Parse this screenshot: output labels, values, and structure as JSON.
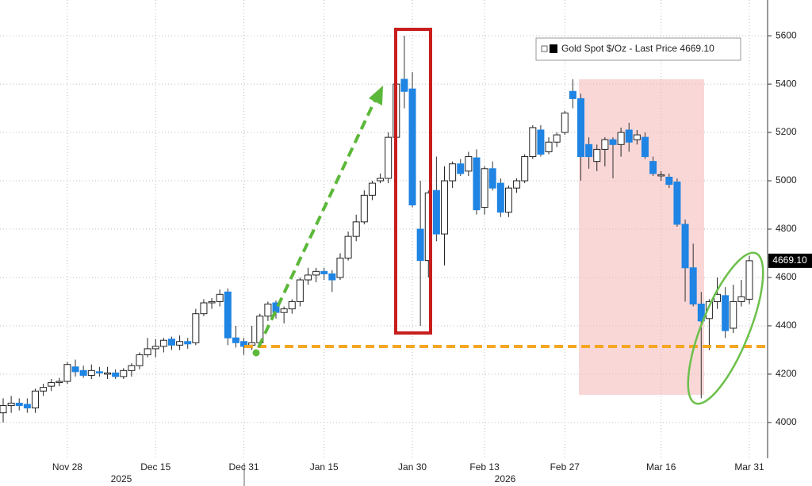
{
  "chart_data": {
    "type": "candlestick",
    "categories": [
      null,
      null,
      null,
      null,
      null,
      null,
      null,
      null,
      "Nov 28",
      null,
      null,
      null,
      null,
      null,
      null,
      null,
      null,
      null,
      null,
      "Dec 15",
      null,
      null,
      null,
      null,
      null,
      null,
      null,
      null,
      null,
      null,
      "Dec 31",
      null,
      null,
      null,
      null,
      null,
      null,
      null,
      null,
      null,
      "Jan 15",
      null,
      null,
      null,
      null,
      null,
      null,
      null,
      null,
      null,
      null,
      "Jan 30",
      null,
      null,
      null,
      null,
      null,
      null,
      null,
      null,
      "Feb 13",
      null,
      null,
      null,
      null,
      null,
      null,
      null,
      null,
      null,
      "Feb 27",
      null,
      null,
      null,
      null,
      null,
      null,
      null,
      null,
      null,
      null,
      null,
      "Mar 16",
      null,
      null,
      null,
      null,
      null,
      null,
      null,
      null,
      null,
      null,
      "Mar 31"
    ],
    "year_labels": [
      "2025",
      "2026"
    ],
    "series": [
      {
        "name": "Gold Spot $/Oz - Last Price 4669.10",
        "color": "#000000",
        "up_color": "#ffffff",
        "down_color": "#1f84e3",
        "open": [
          4040,
          4070,
          4080,
          4075,
          4060,
          4130,
          4150,
          4165,
          4170,
          4230,
          4215,
          4195,
          4210,
          4200,
          4205,
          4190,
          4215,
          4235,
          4280,
          4305,
          4315,
          4345,
          4320,
          4335,
          4330,
          4450,
          4495,
          4500,
          4540,
          4350,
          4335,
          4320,
          4330,
          4440,
          4495,
          4455,
          4470,
          4500,
          4590,
          4610,
          4625,
          4615,
          4600,
          4680,
          4770,
          4830,
          4940,
          5000,
          5010,
          5180,
          5420,
          5380,
          4800,
          4670,
          4960,
          4780,
          5000,
          5070,
          5040,
          5095,
          4890,
          5050,
          4990,
          4870,
          4970,
          5000,
          5100,
          5210,
          5120,
          5160,
          5200,
          5370,
          5340,
          5150,
          5080,
          5130,
          5170,
          5150,
          5210,
          5170,
          5180,
          5080,
          5020,
          5015,
          4995,
          4820,
          4640,
          4490,
          4430,
          4500,
          4525,
          4390,
          4500,
          4510
        ],
        "high": [
          4100,
          4110,
          4100,
          4100,
          4140,
          4160,
          4180,
          4185,
          4250,
          4260,
          4235,
          4240,
          4230,
          4230,
          4220,
          4225,
          4245,
          4290,
          4350,
          4345,
          4350,
          4355,
          4360,
          4350,
          4470,
          4510,
          4515,
          4550,
          4555,
          4400,
          4350,
          4400,
          4450,
          4500,
          4505,
          4480,
          4510,
          4600,
          4640,
          4640,
          4640,
          4630,
          4700,
          4790,
          4860,
          4960,
          5000,
          5030,
          5200,
          5420,
          5600,
          5450,
          5000,
          4960,
          5100,
          5060,
          5080,
          5090,
          5120,
          5130,
          5060,
          5080,
          5010,
          4980,
          5010,
          5110,
          5230,
          5230,
          5180,
          5200,
          5290,
          5420,
          5360,
          5180,
          5150,
          5180,
          5180,
          5220,
          5240,
          5210,
          5200,
          5100,
          5040,
          5030,
          5010,
          4840,
          4740,
          4540,
          4510,
          4600,
          4560,
          4570,
          4590,
          4690
        ],
        "low": [
          4000,
          4040,
          4050,
          4040,
          4040,
          4110,
          4130,
          4150,
          4160,
          4190,
          4185,
          4180,
          4190,
          4180,
          4180,
          4180,
          4190,
          4220,
          4270,
          4270,
          4290,
          4300,
          4300,
          4305,
          4320,
          4440,
          4470,
          4480,
          4320,
          4310,
          4280,
          4300,
          4320,
          4420,
          4430,
          4410,
          4450,
          4480,
          4570,
          4580,
          4590,
          4540,
          4590,
          4670,
          4750,
          4820,
          4920,
          4990,
          4990,
          5150,
          5300,
          4890,
          4400,
          4600,
          4750,
          4650,
          4970,
          5020,
          5020,
          4860,
          4860,
          4960,
          4850,
          4850,
          4950,
          4990,
          5090,
          5100,
          5110,
          5140,
          5190,
          5300,
          5000,
          5050,
          5040,
          5060,
          5010,
          5100,
          5120,
          5150,
          5090,
          5020,
          5000,
          4970,
          4810,
          4500,
          4480,
          4100,
          4300,
          4470,
          4350,
          4370,
          4480,
          4490
        ],
        "close": [
          4070,
          4080,
          4070,
          4060,
          4130,
          4145,
          4165,
          4170,
          4240,
          4210,
          4195,
          4215,
          4205,
          4205,
          4190,
          4215,
          4235,
          4280,
          4305,
          4315,
          4340,
          4320,
          4335,
          4325,
          4450,
          4495,
          4500,
          4530,
          4350,
          4330,
          4315,
          4330,
          4440,
          4490,
          4455,
          4470,
          4500,
          4590,
          4610,
          4625,
          4615,
          4590,
          4680,
          4770,
          4830,
          4940,
          4990,
          5010,
          5180,
          5400,
          5370,
          4900,
          4670,
          4950,
          4780,
          5000,
          5070,
          5030,
          5100,
          4880,
          5050,
          4970,
          4870,
          4970,
          5000,
          5100,
          5220,
          5110,
          5160,
          5190,
          5280,
          5340,
          5100,
          5100,
          5130,
          5170,
          5150,
          5200,
          5160,
          5190,
          5100,
          5030,
          5025,
          4985,
          4820,
          4640,
          4490,
          4420,
          4500,
          4530,
          4380,
          4500,
          4520,
          4669.1
        ]
      }
    ],
    "last_label": "4669.10",
    "ylim": [
      3852,
      5748
    ],
    "yticks": [
      4000,
      4200,
      4400,
      4600,
      4800,
      5000,
      5200,
      5400,
      5600
    ],
    "grid": true
  }
}
